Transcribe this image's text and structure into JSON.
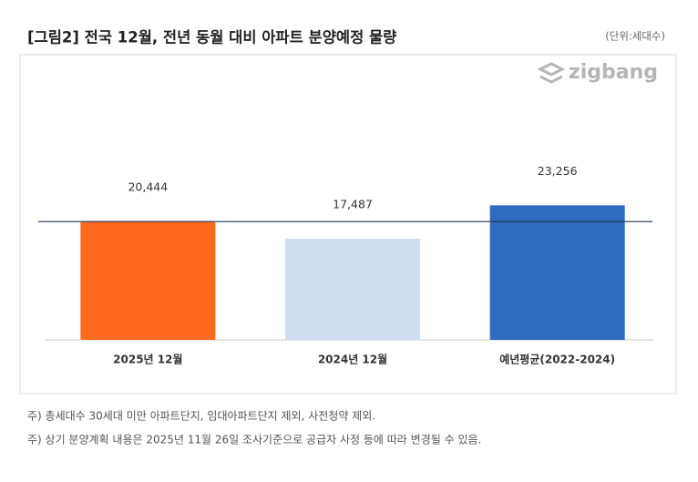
{
  "chart_data": {
    "type": "bar",
    "title": "[그림2] 전국 12월, 전년 동월 대비 아파트 분양예정 물량",
    "unit": "(단위:세대수)",
    "logo": "zigbang",
    "categories": [
      "2025년 12월",
      "2024년 12월",
      "예년평균(2022-2024)"
    ],
    "values": [
      20444,
      17487,
      23256
    ],
    "value_labels": [
      "20,444",
      "17,487",
      "23,256"
    ],
    "colors": [
      "#ff6a1f",
      "#d0ddf0",
      "#2f6bbf"
    ],
    "ylim": [
      0,
      40000
    ],
    "reference_line": true,
    "notes": [
      "주) 총세대수 30세대 미만 아파트단지, 임대아파트단지 제외, 사전청약 제외.",
      "주) 상기 분양계획 내용은 2025년 11월 26일 조사기준으로 공급자 사정 등에 따라 변경될 수 있음."
    ]
  }
}
